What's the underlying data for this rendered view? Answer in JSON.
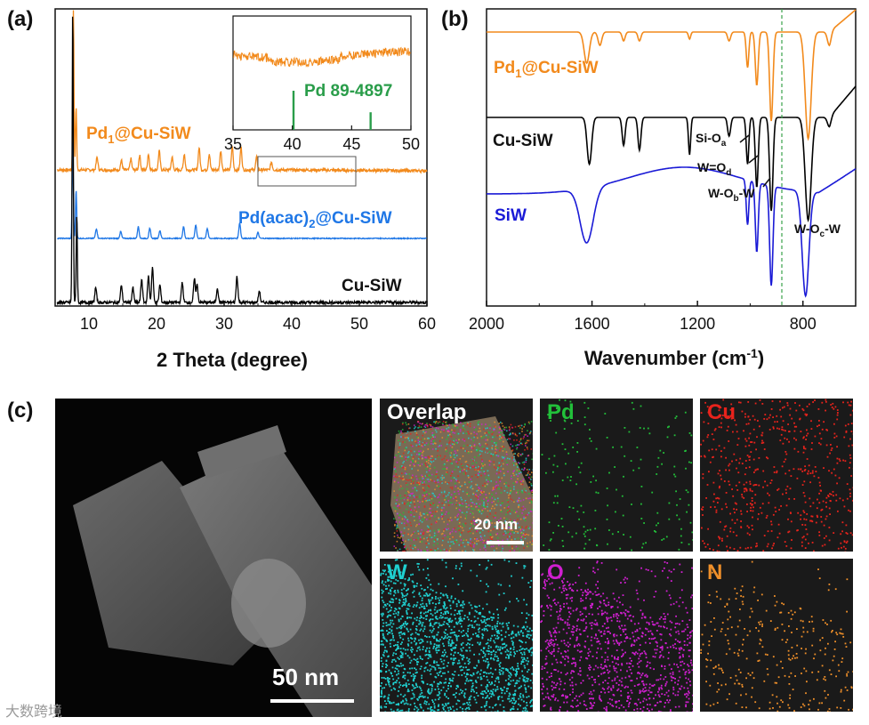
{
  "panels": {
    "a": "(a)",
    "b": "(b)",
    "c": "(c)"
  },
  "chart_data": [
    {
      "type": "line",
      "panel": "(a)",
      "xlabel": "2 Theta (degree)",
      "ylabel": "",
      "xlim": [
        5,
        60
      ],
      "xticks": [
        "10",
        "20",
        "30",
        "40",
        "50",
        "60"
      ],
      "series": [
        {
          "name": "Pd1@Cu-SiW",
          "color": "#f28a1c",
          "peaks": [
            [
              7.7,
              1.0
            ],
            [
              8.1,
              0.4
            ],
            [
              11.2,
              0.08
            ],
            [
              14.8,
              0.06
            ],
            [
              16.2,
              0.07
            ],
            [
              17.5,
              0.09
            ],
            [
              18.8,
              0.1
            ],
            [
              20.4,
              0.12
            ],
            [
              22.3,
              0.08
            ],
            [
              24.1,
              0.1
            ],
            [
              26.3,
              0.14
            ],
            [
              27.8,
              0.1
            ],
            [
              29.5,
              0.12
            ],
            [
              31.2,
              0.15
            ],
            [
              32.5,
              0.14
            ],
            [
              34.8,
              0.08
            ],
            [
              37.0,
              0.05
            ]
          ]
        },
        {
          "name": "Pd(acac)2@Cu-SiW",
          "color": "#1f77e6",
          "peaks": [
            [
              7.6,
              1.0
            ],
            [
              8.1,
              0.5
            ],
            [
              11.1,
              0.1
            ],
            [
              14.7,
              0.07
            ],
            [
              17.3,
              0.12
            ],
            [
              19.0,
              0.1
            ],
            [
              20.5,
              0.08
            ],
            [
              24.0,
              0.12
            ],
            [
              25.8,
              0.14
            ],
            [
              27.5,
              0.1
            ],
            [
              32.3,
              0.16
            ],
            [
              35.0,
              0.06
            ]
          ]
        },
        {
          "name": "Cu-SiW",
          "color": "#000000",
          "peaks": [
            [
              7.6,
              1.0
            ],
            [
              8.2,
              0.3
            ],
            [
              11.0,
              0.05
            ],
            [
              14.8,
              0.06
            ],
            [
              16.5,
              0.05
            ],
            [
              17.8,
              0.08
            ],
            [
              18.8,
              0.09
            ],
            [
              19.4,
              0.12
            ],
            [
              20.5,
              0.06
            ],
            [
              23.8,
              0.07
            ],
            [
              25.6,
              0.08
            ],
            [
              26.0,
              0.06
            ],
            [
              29.0,
              0.05
            ],
            [
              31.9,
              0.09
            ],
            [
              35.2,
              0.04
            ]
          ]
        }
      ],
      "inset": {
        "xlim": [
          35,
          50
        ],
        "xticks": [
          "35",
          "40",
          "45",
          "50"
        ],
        "reference": {
          "label": "Pd 89-4897",
          "peaks": [
            [
              40.1,
              1.0
            ],
            [
              46.6,
              0.45
            ]
          ],
          "color": "#2a9d4a"
        }
      }
    },
    {
      "type": "line",
      "panel": "(b)",
      "xlabel": "Wavenumber (cm",
      "xlabel_sup": "-1",
      "xlabel_close": ")",
      "ylabel": "",
      "xlim": [
        2000,
        600
      ],
      "xticks": [
        "2000",
        "1600",
        "1200",
        "800"
      ],
      "marker_line": 880,
      "series": [
        {
          "name": "Pd1@Cu-SiW",
          "color": "#f28a1c",
          "bands": [
            [
              1620,
              0.35
            ],
            [
              1570,
              0.15
            ],
            [
              1480,
              0.1
            ],
            [
              1420,
              0.1
            ],
            [
              1230,
              0.08
            ],
            [
              1080,
              0.1
            ],
            [
              1010,
              0.4
            ],
            [
              975,
              0.6
            ],
            [
              920,
              1.0
            ],
            [
              780,
              1.2
            ],
            [
              700,
              0.15
            ]
          ]
        },
        {
          "name": "Cu-SiW",
          "color": "#000000",
          "bands": [
            [
              1610,
              0.5
            ],
            [
              1480,
              0.3
            ],
            [
              1420,
              0.35
            ],
            [
              1230,
              0.4
            ],
            [
              1080,
              0.2
            ],
            [
              1010,
              0.5
            ],
            [
              975,
              0.75
            ],
            [
              920,
              1.0
            ],
            [
              780,
              1.1
            ],
            [
              700,
              0.1
            ]
          ]
        },
        {
          "name": "SiW",
          "color": "#1a1ad6",
          "bands": [
            [
              1620,
              0.55
            ],
            [
              1010,
              0.45
            ],
            [
              975,
              0.7
            ],
            [
              920,
              1.0
            ],
            [
              790,
              1.05
            ]
          ]
        }
      ],
      "annotations": [
        {
          "text": "Si-O",
          "sub": "a"
        },
        {
          "text": "W=O",
          "sub": "d"
        },
        {
          "text": "W-O",
          "sub": "b",
          "suffix": "-W"
        },
        {
          "text": "W-O",
          "sub": "c",
          "suffix": "-W"
        }
      ]
    }
  ],
  "panel_c": {
    "scale_main": "50 nm",
    "scale_overlap": "20 nm",
    "tiles": [
      {
        "label": "Overlap",
        "color": "#ffffff"
      },
      {
        "label": "Pd",
        "color": "#22c03a"
      },
      {
        "label": "Cu",
        "color": "#e8231c"
      },
      {
        "label": "W",
        "color": "#1fd0d0"
      },
      {
        "label": "O",
        "color": "#d01fd0"
      },
      {
        "label": "N",
        "color": "#f0902a"
      }
    ]
  },
  "watermark": "大数跨境"
}
